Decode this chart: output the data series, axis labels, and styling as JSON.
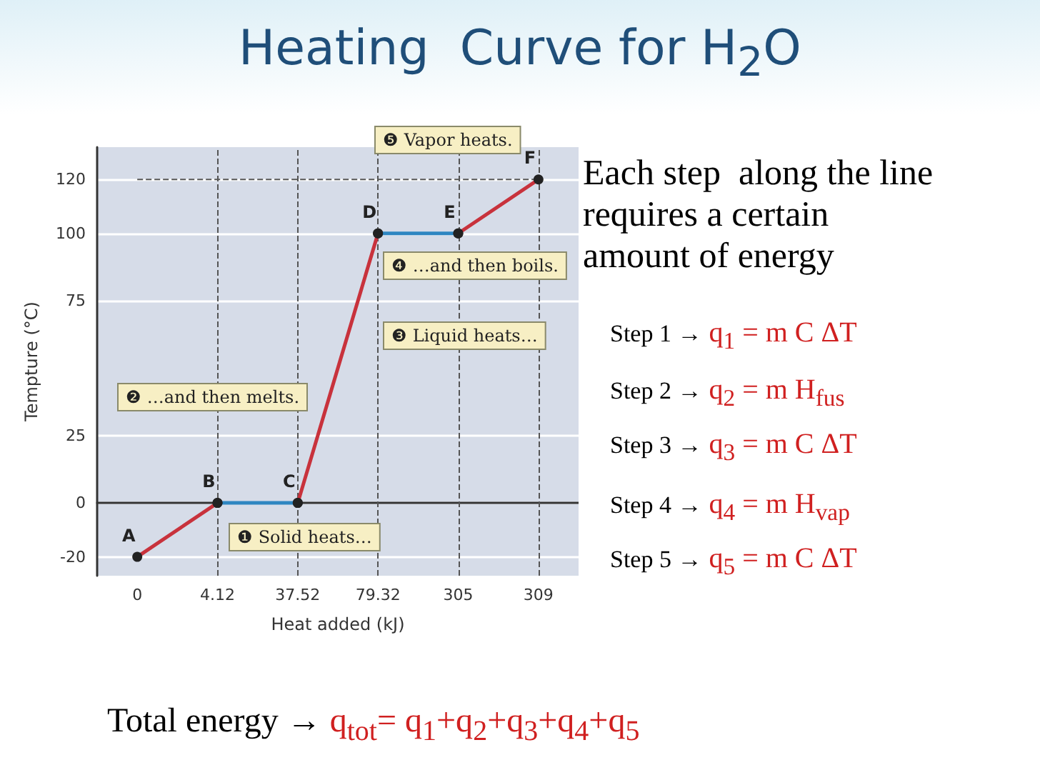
{
  "chart_data": {
    "type": "line",
    "title": "Heating  Curve for H$_{2}$O",
    "xlabel": "Heat added (kJ)",
    "ylabel": "Tempture (°C)",
    "categories": [
      "0",
      "4.12",
      "37.52",
      "79.32",
      "305",
      "309"
    ],
    "series": [
      {
        "color": "#c8323c",
        "values": [
          -20,
          0,
          null,
          null,
          null,
          null
        ]
      },
      {
        "color": "#2e86c1",
        "values": [
          null,
          0,
          0,
          null,
          null,
          null
        ]
      },
      {
        "color": "#c8323c",
        "values": [
          null,
          null,
          0,
          100,
          null,
          null
        ]
      },
      {
        "color": "#2e86c1",
        "values": [
          null,
          null,
          null,
          100,
          100,
          null
        ]
      },
      {
        "color": "#c8323c",
        "values": [
          null,
          null,
          null,
          null,
          100,
          120
        ]
      }
    ],
    "ylim": [
      -27,
      132
    ],
    "yticks": [
      -20,
      0,
      25,
      75,
      100,
      120
    ],
    "grid": "y",
    "marker": "circle",
    "line_style": "solid",
    "ref_lines": [
      {
        "axis": "y",
        "value": 120,
        "line_style": "dashed"
      },
      {
        "axis": "x",
        "value": "4.12",
        "line_style": "dashed"
      },
      {
        "axis": "x",
        "value": "37.52",
        "line_style": "dashed"
      },
      {
        "axis": "x",
        "value": "79.32",
        "line_style": "dashed"
      },
      {
        "axis": "x",
        "value": "305",
        "line_style": "dashed"
      },
      {
        "axis": "x",
        "value": "309",
        "line_style": "dashed"
      }
    ],
    "annotations": [
      "Each step  along the line\nrequires a certain\namount of energy",
      "Step 1 → q$_{1}$ = m C ΔT",
      "Step 2 → q$_{2}$ = m H$_{fus}$",
      "Step 3 → q$_{3}$ = m C ΔT",
      "Step 4 → q$_{4}$ = m H$_{vap}$",
      "Step 5 → q$_{5}$ = m C ΔT",
      "Total energy → q$_{tot}$= q$_{1}$+q$_{2}$+q$_{3}$+q$_{4}$+q$_{5}$",
      "❶ Solid heats…",
      "❷ …and then melts.",
      "❸ Liquid heats…",
      "❹ …and then boils.",
      "❺ Vapor heats.",
      {
        "text": "A",
        "x": "0",
        "y": -20
      },
      {
        "text": "B",
        "x": "4.12",
        "y": 0
      },
      {
        "text": "C",
        "x": "37.52",
        "y": 0
      },
      {
        "text": "D",
        "x": "79.32",
        "y": 100
      },
      {
        "text": "E",
        "x": "305",
        "y": 100
      },
      {
        "text": "F",
        "x": "309",
        "y": 120
      }
    ]
  }
}
